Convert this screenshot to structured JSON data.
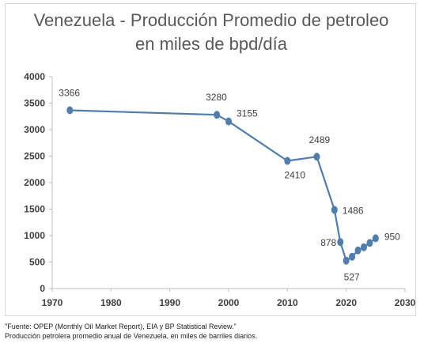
{
  "title_line1": "Venezuela - Producción Promedio de petroleo",
  "title_line2": "en miles de bpd/día",
  "caption_line1": "\"Fuente: OPEP (Monthly Oil Market Report), EIA y BP Statistical Review.\"",
  "caption_line2": "Producción petrolera promedio anual de Venezuela, en miles de barriles diarios.",
  "colors": {
    "series": "#4f7dad",
    "axis": "#bfbfbf",
    "text": "#404040"
  },
  "chart_data": {
    "type": "line",
    "title": "Venezuela - Producción Promedio de petroleo en miles de bpd/día",
    "xlim": [
      1970,
      2030
    ],
    "ylim": [
      0,
      4000
    ],
    "xticks": [
      1970,
      1980,
      1990,
      2000,
      2010,
      2020,
      2030
    ],
    "yticks": [
      0,
      500,
      1000,
      1500,
      2000,
      2500,
      3000,
      3500,
      4000
    ],
    "grid": false,
    "series": [
      {
        "x": [
          1973,
          1998,
          2000,
          2010,
          2015,
          2018,
          2019,
          2020,
          2021,
          2022,
          2023,
          2024,
          2025
        ],
        "y": [
          3366,
          3280,
          3155,
          2410,
          2489,
          1486,
          878,
          527,
          600,
          720,
          780,
          860,
          950
        ]
      }
    ],
    "data_labels": [
      {
        "x": 1973,
        "y": 3366,
        "text": "3366"
      },
      {
        "x": 1998,
        "y": 3280,
        "text": "3280"
      },
      {
        "x": 2000,
        "y": 3155,
        "text": "3155"
      },
      {
        "x": 2010,
        "y": 2410,
        "text": "2410"
      },
      {
        "x": 2015,
        "y": 2489,
        "text": "2489"
      },
      {
        "x": 2018,
        "y": 1486,
        "text": "1486"
      },
      {
        "x": 2019,
        "y": 878,
        "text": "878"
      },
      {
        "x": 2020,
        "y": 527,
        "text": "527"
      },
      {
        "x": 2025,
        "y": 950,
        "text": "950"
      }
    ]
  }
}
